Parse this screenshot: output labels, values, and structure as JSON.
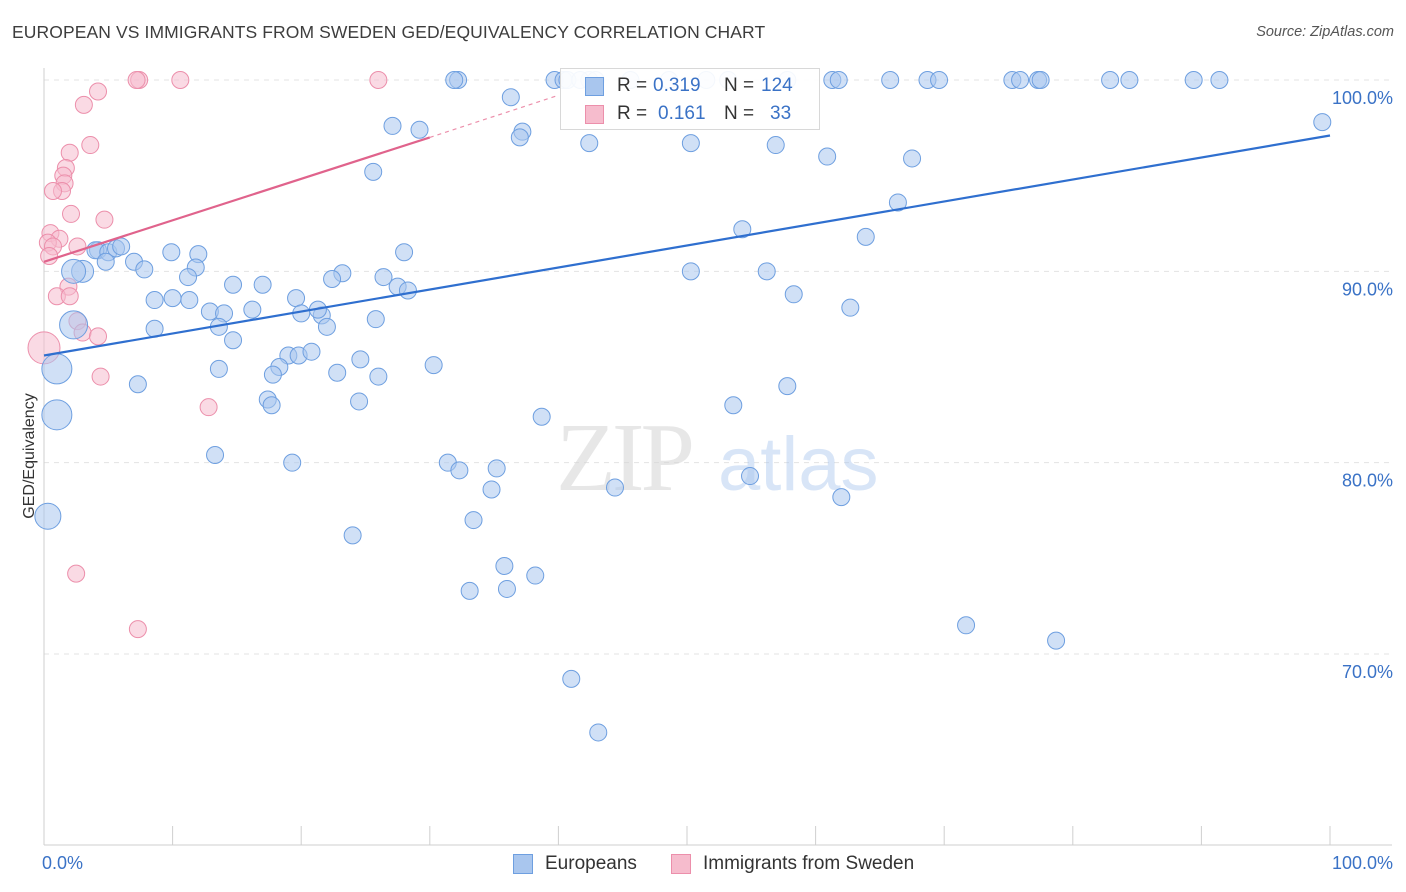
{
  "title": "EUROPEAN VS IMMIGRANTS FROM SWEDEN GED/EQUIVALENCY CORRELATION CHART",
  "source": "Source: ZipAtlas.com",
  "watermark": {
    "zip": "ZIP",
    "atlas": "atlas"
  },
  "colors": {
    "blue_fill": "#a9c6ee",
    "blue_stroke": "#6e9fe0",
    "blue_line": "#2f6fcf",
    "pink_fill": "#f6bccd",
    "pink_stroke": "#ec8fab",
    "pink_line": "#e0638c",
    "accent_text": "#3a72c6",
    "grid": "#e3e3e3"
  },
  "legend": {
    "rows": [
      {
        "r_label": "R =",
        "r_value": "0.319",
        "n_label": "N =",
        "n_value": "124"
      },
      {
        "r_label": "R =",
        "r_value": "0.161",
        "n_label": "N =",
        "n_value": "33"
      }
    ]
  },
  "bottom_legend": {
    "europeans": "Europeans",
    "immigrants": "Immigrants from Sweden"
  },
  "chart_data": {
    "type": "scatter",
    "title": "EUROPEAN VS IMMIGRANTS FROM SWEDEN GED/EQUIVALENCY CORRELATION CHART",
    "xlabel": "",
    "ylabel": "GED/Equivalency",
    "xlim": [
      0,
      100
    ],
    "ylim": [
      60.5,
      101.5
    ],
    "y_ticks": [
      {
        "value": 100,
        "label": "100.0%"
      },
      {
        "value": 90,
        "label": "90.0%"
      },
      {
        "value": 80,
        "label": "80.0%"
      },
      {
        "value": 70,
        "label": "70.0%"
      }
    ],
    "x_tick_labels": {
      "min": "0.0%",
      "max": "100.0%"
    },
    "x_minor_ticks": [
      10,
      20,
      30,
      40,
      50,
      60,
      70,
      80,
      90,
      100
    ],
    "legend_position": "top-center",
    "series": [
      {
        "name": "Europeans",
        "color": "blue",
        "r": 0.319,
        "n": 124,
        "trend": {
          "x": [
            0,
            100
          ],
          "y": [
            85.6,
            97.1
          ]
        },
        "points": [
          [
            32.2,
            100
          ],
          [
            31.9,
            100
          ],
          [
            42.4,
            100
          ],
          [
            39.7,
            100
          ],
          [
            40.4,
            100
          ],
          [
            40.7,
            100
          ],
          [
            41.7,
            100
          ],
          [
            42.9,
            100
          ],
          [
            45.6,
            100
          ],
          [
            48.6,
            100
          ],
          [
            51.5,
            100
          ],
          [
            53.2,
            100
          ],
          [
            57.8,
            100
          ],
          [
            61.3,
            100
          ],
          [
            61.8,
            100
          ],
          [
            65.8,
            100
          ],
          [
            68.7,
            100
          ],
          [
            69.6,
            100
          ],
          [
            75.3,
            100
          ],
          [
            75.9,
            100
          ],
          [
            77.3,
            100
          ],
          [
            77.5,
            100
          ],
          [
            82.9,
            100
          ],
          [
            84.4,
            100
          ],
          [
            89.4,
            100
          ],
          [
            91.4,
            100
          ],
          [
            36.3,
            99.1
          ],
          [
            27.1,
            97.6
          ],
          [
            29.2,
            97.4
          ],
          [
            37.2,
            97.3
          ],
          [
            37.0,
            97.0
          ],
          [
            42.4,
            96.7
          ],
          [
            50.3,
            96.7
          ],
          [
            56.9,
            96.6
          ],
          [
            60.9,
            96.0
          ],
          [
            67.5,
            95.9
          ],
          [
            25.6,
            95.2
          ],
          [
            99.4,
            97.8
          ],
          [
            66.4,
            93.6
          ],
          [
            54.3,
            92.2
          ],
          [
            63.9,
            91.8
          ],
          [
            4.2,
            91.1
          ],
          [
            4.0,
            91.1
          ],
          [
            5.0,
            91.0
          ],
          [
            5.6,
            91.2
          ],
          [
            6.0,
            91.3
          ],
          [
            7.0,
            90.5
          ],
          [
            9.9,
            91.0
          ],
          [
            12.0,
            90.9
          ],
          [
            4.8,
            90.5
          ],
          [
            3.0,
            90.0
          ],
          [
            7.8,
            90.1
          ],
          [
            11.8,
            90.2
          ],
          [
            2.3,
            90.0
          ],
          [
            28.0,
            91.0
          ],
          [
            11.2,
            89.7
          ],
          [
            23.2,
            89.9
          ],
          [
            14.7,
            89.3
          ],
          [
            17.0,
            89.3
          ],
          [
            19.6,
            88.6
          ],
          [
            22.4,
            89.6
          ],
          [
            26.4,
            89.7
          ],
          [
            27.5,
            89.2
          ],
          [
            28.3,
            89.0
          ],
          [
            8.6,
            88.5
          ],
          [
            11.3,
            88.5
          ],
          [
            10.0,
            88.6
          ],
          [
            12.9,
            87.9
          ],
          [
            14.0,
            87.8
          ],
          [
            16.2,
            88.0
          ],
          [
            20.0,
            87.8
          ],
          [
            21.6,
            87.7
          ],
          [
            21.3,
            88.0
          ],
          [
            25.8,
            87.5
          ],
          [
            22.0,
            87.1
          ],
          [
            8.6,
            87.0
          ],
          [
            13.6,
            87.1
          ],
          [
            2.3,
            87.2
          ],
          [
            14.7,
            86.4
          ],
          [
            19.0,
            85.6
          ],
          [
            19.8,
            85.6
          ],
          [
            20.8,
            85.8
          ],
          [
            18.3,
            85.0
          ],
          [
            17.8,
            84.6
          ],
          [
            22.8,
            84.7
          ],
          [
            24.6,
            85.4
          ],
          [
            26.0,
            84.5
          ],
          [
            30.3,
            85.1
          ],
          [
            7.3,
            84.1
          ],
          [
            13.6,
            84.9
          ],
          [
            1.0,
            84.9
          ],
          [
            17.4,
            83.3
          ],
          [
            17.7,
            83.0
          ],
          [
            24.5,
            83.2
          ],
          [
            1.0,
            82.5
          ],
          [
            13.3,
            80.4
          ],
          [
            19.3,
            80.0
          ],
          [
            31.4,
            80.0
          ],
          [
            32.3,
            79.6
          ],
          [
            35.2,
            79.7
          ],
          [
            34.8,
            78.6
          ],
          [
            44.4,
            78.7
          ],
          [
            0.3,
            77.2
          ],
          [
            33.4,
            77.0
          ],
          [
            24.0,
            76.2
          ],
          [
            35.8,
            74.6
          ],
          [
            36.0,
            73.4
          ],
          [
            38.2,
            74.1
          ],
          [
            33.1,
            73.3
          ],
          [
            41.0,
            68.7
          ],
          [
            43.1,
            65.9
          ],
          [
            50.3,
            90.0
          ],
          [
            56.2,
            90.0
          ],
          [
            58.3,
            88.8
          ],
          [
            62.7,
            88.1
          ],
          [
            57.8,
            84.0
          ],
          [
            53.6,
            83.0
          ],
          [
            38.7,
            82.4
          ],
          [
            54.9,
            79.3
          ],
          [
            62.0,
            78.2
          ],
          [
            71.7,
            71.5
          ],
          [
            78.7,
            70.7
          ]
        ]
      },
      {
        "name": "Immigrants from Sweden",
        "color": "pink",
        "r": 0.161,
        "n": 33,
        "trend": {
          "x": [
            0,
            30
          ],
          "y": [
            90.5,
            97.0
          ]
        },
        "trend_dashed_extension": {
          "x": [
            30,
            40
          ],
          "y": [
            97.0,
            99.2
          ]
        },
        "points": [
          [
            7.4,
            100
          ],
          [
            7.2,
            100
          ],
          [
            10.6,
            100
          ],
          [
            26.0,
            100
          ],
          [
            4.2,
            99.4
          ],
          [
            3.1,
            98.7
          ],
          [
            3.6,
            96.6
          ],
          [
            2.0,
            96.2
          ],
          [
            1.7,
            95.4
          ],
          [
            1.5,
            95.0
          ],
          [
            1.6,
            94.6
          ],
          [
            1.4,
            94.2
          ],
          [
            0.7,
            94.2
          ],
          [
            2.1,
            93.0
          ],
          [
            4.7,
            92.7
          ],
          [
            0.5,
            92.0
          ],
          [
            1.2,
            91.7
          ],
          [
            0.3,
            91.5
          ],
          [
            0.7,
            91.3
          ],
          [
            2.6,
            91.3
          ],
          [
            0.4,
            90.8
          ],
          [
            1.9,
            89.2
          ],
          [
            1.0,
            88.7
          ],
          [
            2.0,
            88.7
          ],
          [
            2.6,
            87.4
          ],
          [
            3.0,
            86.8
          ],
          [
            4.2,
            86.6
          ],
          [
            0.0,
            86.0
          ],
          [
            4.4,
            84.5
          ],
          [
            12.8,
            82.9
          ],
          [
            2.5,
            74.2
          ],
          [
            7.3,
            71.3
          ]
        ]
      }
    ]
  }
}
